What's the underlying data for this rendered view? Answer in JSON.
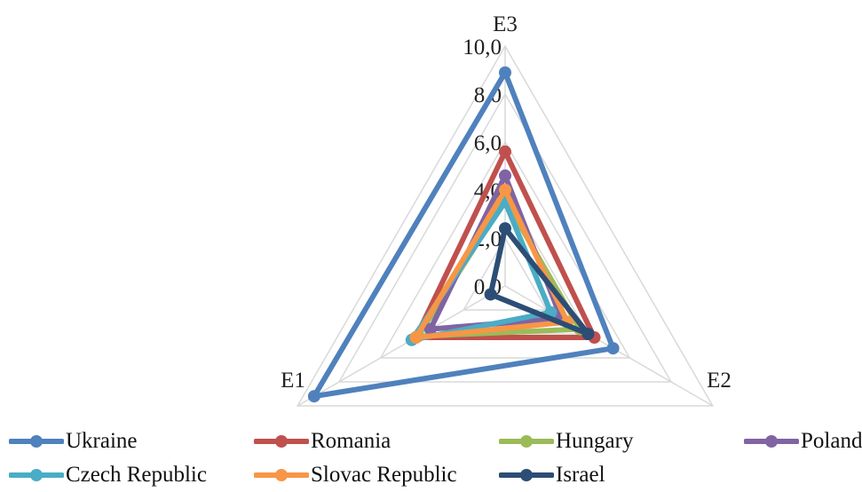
{
  "chart_data": {
    "type": "radar",
    "axes": [
      "E3",
      "E2",
      "E1"
    ],
    "rlim": [
      0,
      10
    ],
    "tick_labels": [
      "0,0",
      "2,0",
      "4,0",
      "6,0",
      "8,0",
      "10,0"
    ],
    "gridlines": true,
    "legend_position": "bottom",
    "series": [
      {
        "name": "Ukraine",
        "color": "#4f81bd",
        "values": [
          8.9,
          5.2,
          9.2
        ]
      },
      {
        "name": "Romania",
        "color": "#c0504d",
        "values": [
          5.6,
          4.3,
          4.3
        ]
      },
      {
        "name": "Hungary",
        "color": "#9bbb59",
        "values": [
          3.6,
          3.6,
          4.2
        ]
      },
      {
        "name": "Poland",
        "color": "#8064a2",
        "values": [
          4.6,
          2.7,
          3.6
        ]
      },
      {
        "name": "Czech Republic",
        "color": "#4bacc6",
        "values": [
          3.5,
          2.2,
          4.5
        ]
      },
      {
        "name": "Slovac Republic",
        "color": "#f79646",
        "values": [
          4.0,
          3.0,
          4.3
        ]
      },
      {
        "name": "Israel",
        "color": "#2c4d75",
        "values": [
          2.4,
          4.0,
          0.7
        ]
      }
    ]
  },
  "legend": {
    "rows": [
      [
        "Ukraine",
        "Romania",
        "Hungary",
        "Poland"
      ],
      [
        "Czech Republic",
        "Slovac Republic",
        "Israel"
      ]
    ]
  }
}
